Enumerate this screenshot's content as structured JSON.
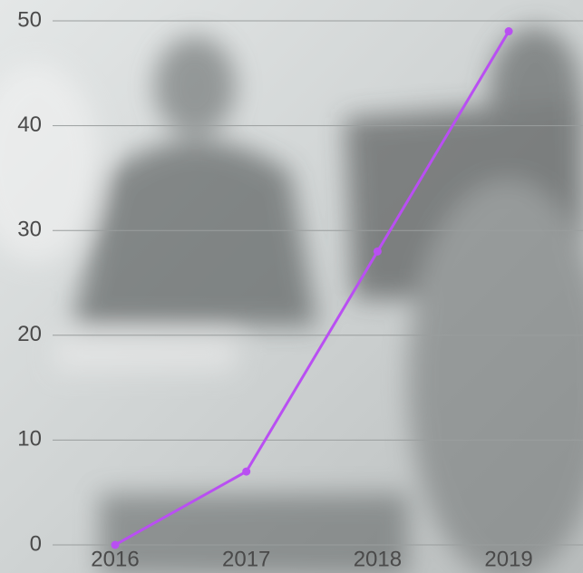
{
  "chart_data": {
    "type": "line",
    "categories": [
      "2016",
      "2017",
      "2018",
      "2019"
    ],
    "series": [
      {
        "name": null,
        "color": "#b94ff2",
        "values": [
          0,
          7,
          28,
          49
        ]
      }
    ],
    "ylim": [
      0,
      50
    ],
    "yticks": [
      0,
      10,
      20,
      30,
      40,
      50
    ],
    "grid": true
  }
}
